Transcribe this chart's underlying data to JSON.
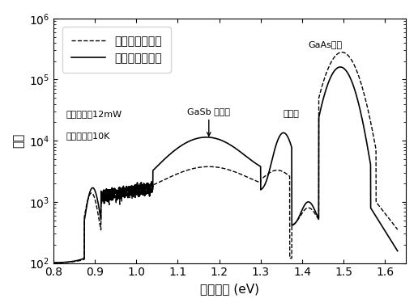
{
  "title": "",
  "xlabel": "光子能量 (eV)",
  "ylabel": "强度",
  "xlim": [
    0.8,
    1.65
  ],
  "ylim_log": [
    100,
    1000000
  ],
  "legend_entries": [
    "单层量子点材料",
    "多层量子点材料"
  ],
  "extra_text": [
    "激发功率：12mW",
    "测试温度：10K"
  ],
  "background_color": "#ffffff",
  "gasb_label": "GaSb 量子点",
  "wetting_label": "浸润层",
  "gaas_label": "GaAs衬底"
}
